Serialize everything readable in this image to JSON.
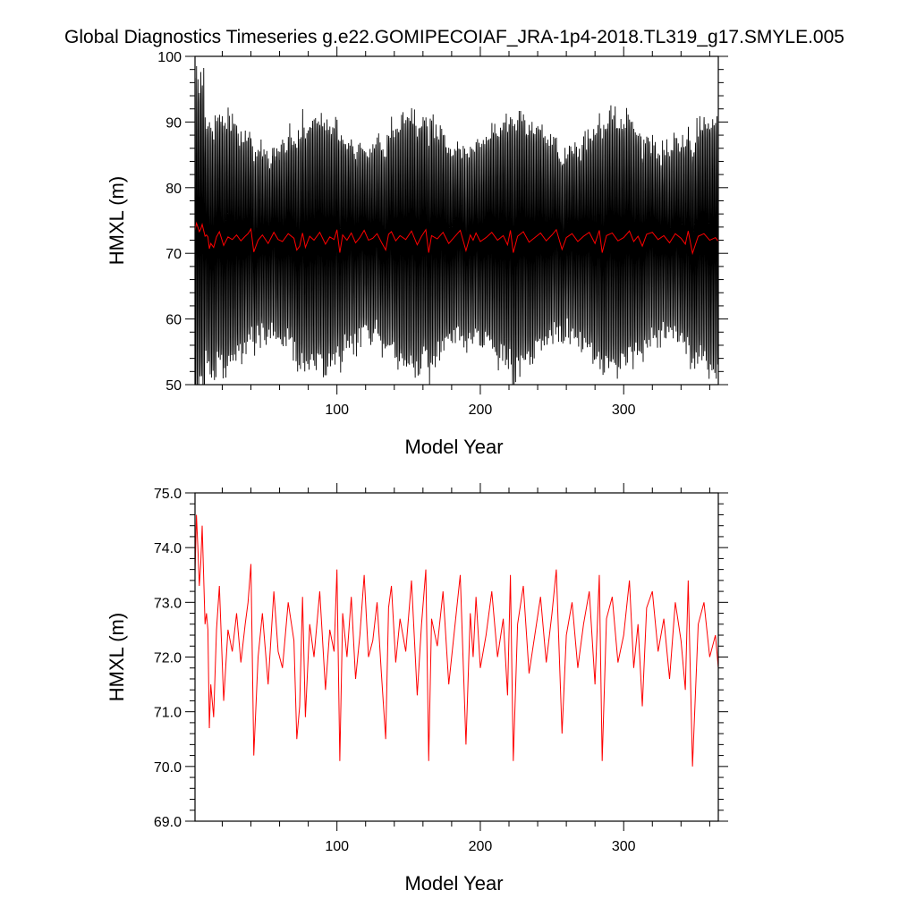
{
  "title": "Global Diagnostics Timeseries g.e22.GOMIPECOIAF_JRA-1p4-2018.TL319_g17.SMYLE.005",
  "colors": {
    "monthly": "#000000",
    "annual": "#ff0000",
    "axis": "#000000"
  },
  "chart_data": [
    {
      "type": "line",
      "title": "",
      "xlabel": "Model Year",
      "ylabel": "HMXL (m)",
      "xlim": [
        1,
        366
      ],
      "ylim": [
        50,
        100
      ],
      "xticks": [
        100,
        200,
        300
      ],
      "xtick_labels": [
        "100",
        "200",
        "300"
      ],
      "yticks": [
        50,
        60,
        70,
        80,
        90,
        100
      ],
      "ytick_labels": [
        "50",
        "60",
        "70",
        "80",
        "90",
        "100"
      ],
      "grid": false,
      "series": [
        {
          "color": "#000000",
          "note_values": "monthly mean, ~12 samples per year",
          "summary": {
            "annual_max_range": [
              88,
              97.5
            ],
            "annual_min_range": [
              54.5,
              60
            ],
            "first_year_max": 97.5
          }
        },
        {
          "color": "#ff0000",
          "note_values": "annual mean, same series as lower panel"
        }
      ]
    },
    {
      "type": "line",
      "title": "",
      "xlabel": "Model Year",
      "ylabel": "HMXL (m)",
      "xlim": [
        1,
        366
      ],
      "ylim": [
        69.0,
        75.0
      ],
      "xticks": [
        100,
        200,
        300
      ],
      "xtick_labels": [
        "100",
        "200",
        "300"
      ],
      "yticks": [
        69.0,
        70.0,
        71.0,
        72.0,
        73.0,
        74.0,
        75.0
      ],
      "ytick_labels": [
        "69.0",
        "70.0",
        "71.0",
        "72.0",
        "73.0",
        "74.0",
        "75.0"
      ],
      "grid": false,
      "series": [
        {
          "color": "#ff0000",
          "x": [
            1,
            2,
            3,
            4,
            5,
            6,
            7,
            8,
            9,
            10,
            11,
            12,
            14,
            16,
            18,
            21,
            24,
            27,
            30,
            33,
            36,
            38,
            40,
            42,
            45,
            48,
            52,
            56,
            59,
            62,
            66,
            70,
            72,
            74,
            76,
            78,
            81,
            84,
            88,
            92,
            95,
            98,
            100,
            102,
            104,
            107,
            110,
            113,
            116,
            119,
            122,
            125,
            128,
            131,
            134,
            136,
            138,
            141,
            144,
            148,
            152,
            156,
            159,
            162,
            164,
            166,
            170,
            174,
            178,
            182,
            186,
            190,
            193,
            195,
            197,
            200,
            204,
            208,
            212,
            216,
            219,
            221,
            223,
            226,
            230,
            234,
            238,
            242,
            246,
            250,
            253,
            255,
            257,
            260,
            264,
            268,
            272,
            276,
            280,
            283,
            285,
            288,
            292,
            296,
            300,
            304,
            307,
            310,
            313,
            316,
            320,
            324,
            328,
            332,
            336,
            340,
            343,
            345,
            348,
            352,
            356,
            360,
            364,
            366
          ],
          "y": [
            73.5,
            74.6,
            74.0,
            73.3,
            73.7,
            74.4,
            73.5,
            72.6,
            72.8,
            72.5,
            70.7,
            71.5,
            70.9,
            72.5,
            73.3,
            71.2,
            72.5,
            72.1,
            72.8,
            71.9,
            72.6,
            73.0,
            73.7,
            70.2,
            72.0,
            72.8,
            71.5,
            73.2,
            72.1,
            71.8,
            73.0,
            72.3,
            70.5,
            71.1,
            73.1,
            70.9,
            72.6,
            72.0,
            73.2,
            71.4,
            72.5,
            72.1,
            73.6,
            70.1,
            72.8,
            72.0,
            73.1,
            71.6,
            72.4,
            73.5,
            72.0,
            72.3,
            73.0,
            71.7,
            70.5,
            72.9,
            73.3,
            71.9,
            72.7,
            72.1,
            73.4,
            71.3,
            72.6,
            73.6,
            70.1,
            72.7,
            72.2,
            73.2,
            71.5,
            72.5,
            73.5,
            70.4,
            72.8,
            72.0,
            73.1,
            71.8,
            72.4,
            73.2,
            72.0,
            72.7,
            71.3,
            73.5,
            70.1,
            72.6,
            73.3,
            71.7,
            72.4,
            73.1,
            71.9,
            72.8,
            73.6,
            72.1,
            70.6,
            72.4,
            73.0,
            71.8,
            72.6,
            73.2,
            71.5,
            73.5,
            70.1,
            72.7,
            73.1,
            71.9,
            72.4,
            73.4,
            71.8,
            72.6,
            71.1,
            72.9,
            73.2,
            72.1,
            72.7,
            71.6,
            73.0,
            72.3,
            71.4,
            73.4,
            70.0,
            72.6,
            73.0,
            72.0,
            72.4,
            71.8
          ]
        }
      ]
    }
  ]
}
